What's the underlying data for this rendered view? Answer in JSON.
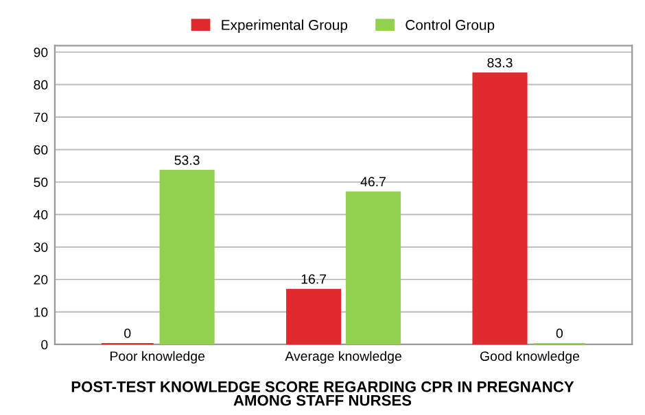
{
  "chart_data": {
    "type": "bar",
    "title": "POST-TEST KNOWLEDGE SCORE REGARDING CPR IN PREGNANCY\nAMONG STAFF NURSES",
    "categories": [
      "Poor knowledge",
      "Average knowledge",
      "Good knowledge"
    ],
    "series": [
      {
        "name": "Experimental Group",
        "color": "#e02a2e",
        "values": [
          0,
          16.7,
          83.3
        ]
      },
      {
        "name": "Control Group",
        "color": "#92d050",
        "values": [
          53.3,
          46.7,
          0
        ]
      }
    ],
    "ylim": [
      0,
      92
    ],
    "yticks": [
      0,
      10,
      20,
      30,
      40,
      50,
      60,
      70,
      80,
      90
    ],
    "grid": "y",
    "legend": "top",
    "data_labels": true
  }
}
